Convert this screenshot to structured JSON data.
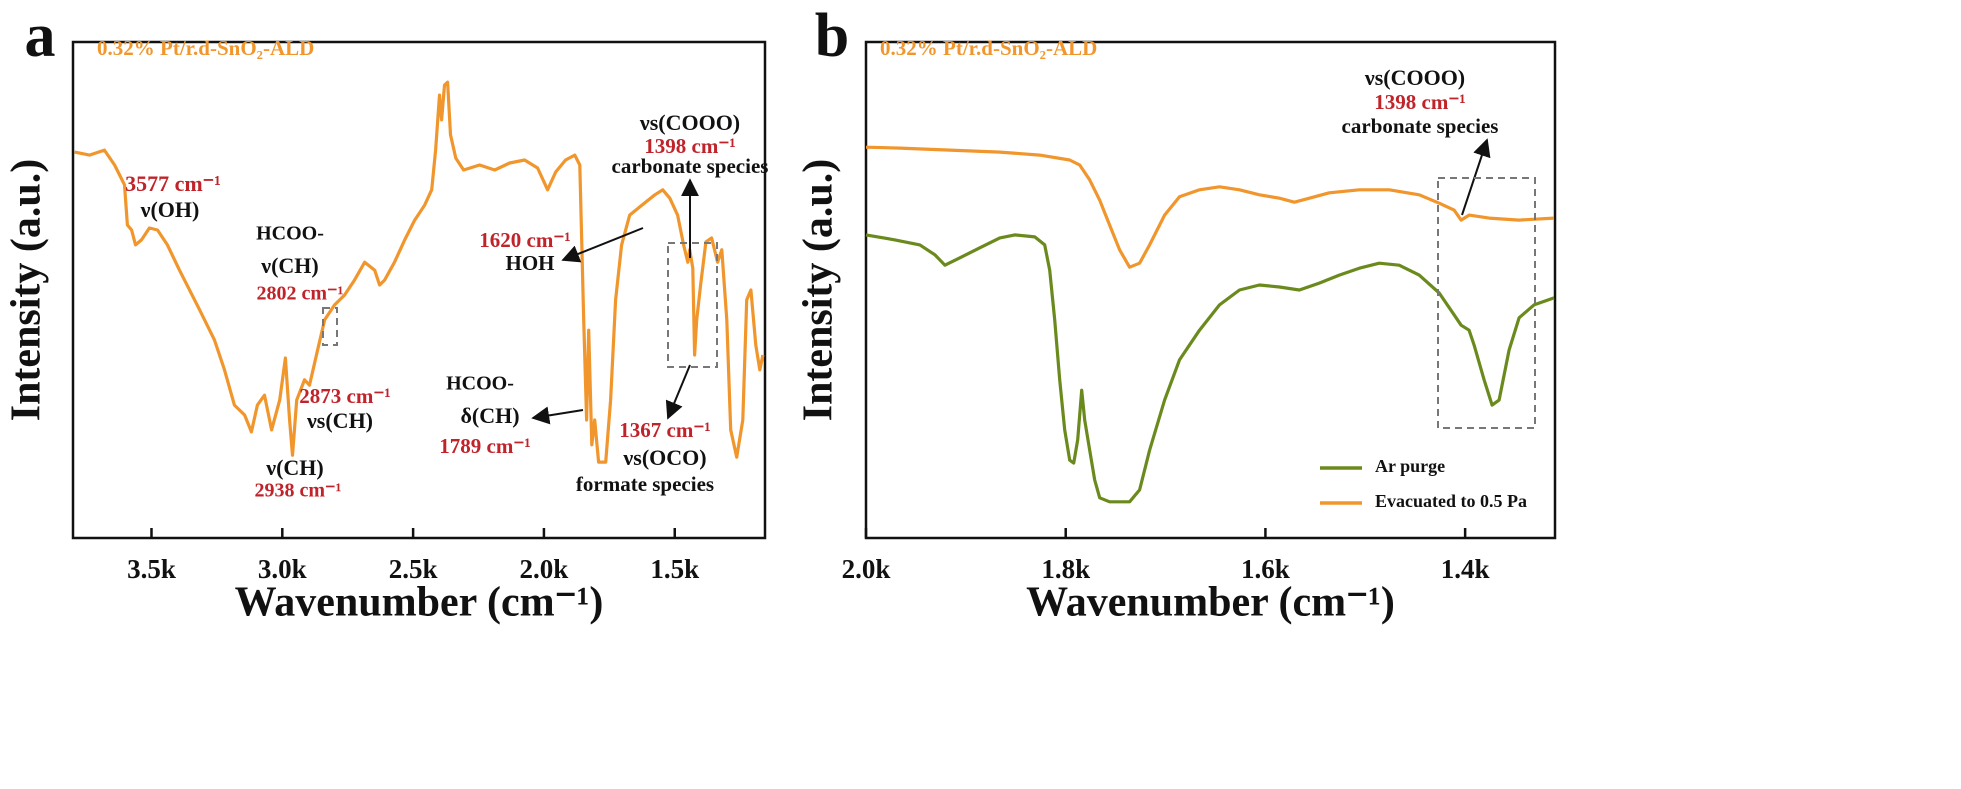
{
  "chart_data": [
    {
      "type": "line",
      "panel_label": "a",
      "title": "0.32% Pt/r.d-SnO₂-ALD",
      "xlabel": "Wavenumber (cm⁻¹)",
      "ylabel": "Intensity (a.u.)",
      "xlim": [
        3800,
        1155
      ],
      "ylim": [
        0,
        100
      ],
      "xticks": [
        {
          "value": 3500,
          "label": "3.5k"
        },
        {
          "value": 3000,
          "label": "3.0k"
        },
        {
          "value": 2500,
          "label": "2.5k"
        },
        {
          "value": 2000,
          "label": "2.0k"
        },
        {
          "value": 1500,
          "label": "1.5k"
        }
      ],
      "series": [
        {
          "color": "#f0962c",
          "x": [
            3794,
            3737,
            3680,
            3641,
            3603,
            3592,
            3576,
            3561,
            3538,
            3508,
            3477,
            3439,
            3393,
            3316,
            3259,
            3221,
            3183,
            3144,
            3118,
            3095,
            3068,
            3041,
            3010,
            2988,
            2972,
            2961,
            2945,
            2915,
            2896,
            2865,
            2838,
            2800,
            2762,
            2724,
            2685,
            2647,
            2628,
            2609,
            2571,
            2532,
            2494,
            2456,
            2429,
            2414,
            2399,
            2391,
            2380,
            2368,
            2357,
            2337,
            2307,
            2246,
            2188,
            2131,
            2074,
            2024,
            1986,
            1955,
            1917,
            1882,
            1863,
            1848,
            1837,
            1829,
            1817,
            1806,
            1791,
            1764,
            1745,
            1726,
            1703,
            1672,
            1626,
            1576,
            1546,
            1519,
            1489,
            1466,
            1450,
            1443,
            1431,
            1424,
            1416,
            1401,
            1381,
            1359,
            1336,
            1320,
            1301,
            1286,
            1263,
            1240,
            1225,
            1209,
            1190,
            1175,
            1163
          ],
          "values": [
            77.8,
            77.2,
            78.2,
            75.2,
            71.2,
            63.1,
            62.1,
            59.1,
            60.1,
            62.5,
            62.1,
            59.1,
            54.0,
            46.0,
            39.9,
            33.9,
            26.8,
            24.8,
            21.4,
            26.8,
            28.8,
            21.8,
            27.8,
            36.3,
            23.8,
            16.7,
            27.8,
            31.9,
            30.8,
            37.9,
            44.0,
            47.0,
            49.0,
            52.0,
            55.6,
            54.0,
            51.0,
            52.0,
            55.6,
            60.1,
            64.1,
            67.1,
            70.2,
            78.2,
            89.3,
            84.3,
            91.3,
            91.9,
            81.3,
            76.6,
            74.2,
            75.2,
            74.2,
            75.6,
            76.2,
            74.6,
            70.2,
            73.8,
            76.2,
            77.2,
            75.2,
            44.0,
            23.8,
            41.9,
            18.8,
            23.8,
            15.3,
            15.3,
            27.8,
            48.0,
            59.1,
            65.1,
            67.1,
            69.2,
            70.2,
            68.5,
            65.1,
            59.1,
            55.6,
            58.1,
            54.4,
            36.9,
            44.0,
            51.0,
            59.7,
            60.5,
            55.6,
            58.1,
            44.0,
            21.8,
            16.3,
            23.8,
            48.0,
            50.0,
            38.9,
            33.9,
            36.9
          ]
        }
      ],
      "annotations": [
        {
          "text": "3577 cm⁻¹",
          "color": "#c0232a"
        },
        {
          "text": "ν(OH)",
          "color": "#111111"
        },
        {
          "text": "HCOO-",
          "color": "#111111"
        },
        {
          "text": "ν(CH)",
          "color": "#111111"
        },
        {
          "text": "2802 cm⁻¹",
          "color": "#c0232a"
        },
        {
          "text": "2873 cm⁻¹",
          "color": "#c0232a"
        },
        {
          "text": "νs(CH)",
          "color": "#111111"
        },
        {
          "text": "ν(CH)",
          "color": "#111111"
        },
        {
          "text": "2938 cm⁻¹",
          "color": "#c0232a"
        },
        {
          "text": "νs(COOO)",
          "color": "#111111"
        },
        {
          "text": "1398 cm⁻¹",
          "color": "#c0232a"
        },
        {
          "text": "carbonate species",
          "color": "#111111"
        },
        {
          "text": "1620 cm⁻¹",
          "color": "#c0232a"
        },
        {
          "text": "HOH",
          "color": "#111111"
        },
        {
          "text": "HCOO-",
          "color": "#111111"
        },
        {
          "text": "δ(CH)",
          "color": "#111111"
        },
        {
          "text": "1789 cm⁻¹",
          "color": "#c0232a"
        },
        {
          "text": "1367 cm⁻¹",
          "color": "#c0232a"
        },
        {
          "text": "νs(OCO)",
          "color": "#111111"
        },
        {
          "text": "formate species",
          "color": "#111111"
        }
      ]
    },
    {
      "type": "line",
      "panel_label": "b",
      "title": "0.32% Pt/r.d-SnO₂-ALD",
      "xlabel": "Wavenumber (cm⁻¹)",
      "ylabel": "Intensity (a.u.)",
      "xlim": [
        2000,
        1310
      ],
      "ylim": [
        0,
        100
      ],
      "legend": "lower right",
      "xticks": [
        {
          "value": 2000,
          "label": "2.0k"
        },
        {
          "value": 1800,
          "label": "1.8k"
        },
        {
          "value": 1600,
          "label": "1.6k"
        },
        {
          "value": 1400,
          "label": "1.4k"
        }
      ],
      "series": [
        {
          "name": "Ar purge",
          "color": "#6b8a1e",
          "x": [
            2000,
            1971,
            1946,
            1931,
            1921,
            1906,
            1886,
            1866,
            1851,
            1831,
            1821,
            1816,
            1811,
            1806,
            1801,
            1796,
            1792,
            1788,
            1784,
            1781,
            1776,
            1771,
            1766,
            1756,
            1736,
            1726,
            1716,
            1701,
            1686,
            1666,
            1646,
            1626,
            1606,
            1586,
            1566,
            1546,
            1526,
            1506,
            1486,
            1466,
            1446,
            1426,
            1411,
            1404,
            1396,
            1391,
            1381,
            1373,
            1366,
            1356,
            1346,
            1331,
            1311
          ],
          "values": [
            61.1,
            60.1,
            59.1,
            57.1,
            55.0,
            56.5,
            58.5,
            60.5,
            61.1,
            60.7,
            59.1,
            54.0,
            44.0,
            31.9,
            21.8,
            15.7,
            15.1,
            19.8,
            29.8,
            23.8,
            17.7,
            11.7,
            8.1,
            7.3,
            7.3,
            9.7,
            17.7,
            27.8,
            35.9,
            41.9,
            47.0,
            50.0,
            51.0,
            50.6,
            50.0,
            51.4,
            53.0,
            54.4,
            55.4,
            55.0,
            53.0,
            49.4,
            45.0,
            42.9,
            41.9,
            38.9,
            31.9,
            26.8,
            27.8,
            37.9,
            44.4,
            47.0,
            48.4
          ]
        },
        {
          "name": "Evacuated to 0.5 Pa",
          "color": "#f0962c",
          "x": [
            2000,
            1966,
            1916,
            1866,
            1826,
            1796,
            1786,
            1776,
            1766,
            1756,
            1746,
            1736,
            1726,
            1716,
            1701,
            1686,
            1666,
            1646,
            1626,
            1606,
            1586,
            1571,
            1556,
            1536,
            1506,
            1476,
            1446,
            1426,
            1411,
            1404,
            1396,
            1376,
            1346,
            1311
          ],
          "values": [
            78.8,
            78.6,
            78.2,
            77.8,
            77.2,
            76.2,
            75.2,
            72.2,
            68.1,
            63.1,
            58.1,
            54.6,
            55.4,
            59.1,
            65.1,
            68.8,
            70.2,
            70.8,
            70.2,
            69.2,
            68.5,
            67.7,
            68.5,
            69.6,
            70.2,
            70.2,
            69.2,
            67.5,
            66.1,
            64.1,
            65.1,
            64.5,
            64.1,
            64.5
          ]
        }
      ],
      "annotations": [
        {
          "text": "νs(COOO)",
          "color": "#111111"
        },
        {
          "text": "1398 cm⁻¹",
          "color": "#c0232a"
        },
        {
          "text": "carbonate species",
          "color": "#111111"
        }
      ]
    }
  ]
}
